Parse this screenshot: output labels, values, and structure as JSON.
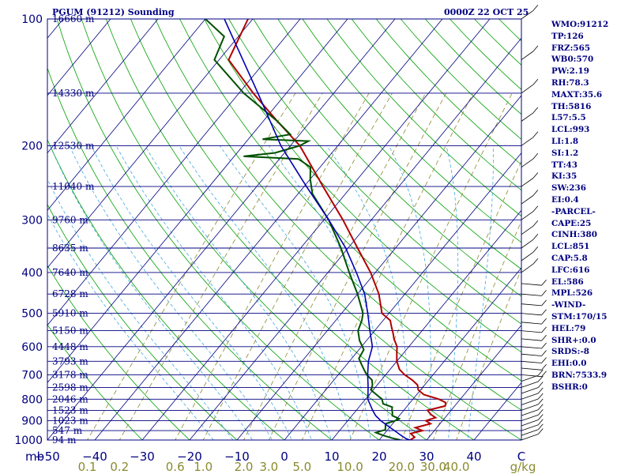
{
  "header": {
    "station": "PGUM (91212) Sounding",
    "time": "0000Z 22 OCT 25"
  },
  "indices": [
    "WMO:91212",
    "TP:126",
    "FRZ:565",
    "WB0:570",
    "PW:2.19",
    "RH:78.3",
    "MAXT:35.6",
    "TH:5816",
    "L57:5.5",
    "LCL:993",
    "LI:1.8",
    "SI:1.2",
    "TT:43",
    "KI:35",
    "SW:236",
    "EI:0.4",
    "-PARCEL-",
    "CAPE:25",
    "CINH:380",
    "LCL:851",
    "CAP:5.8",
    "LFC:616",
    "EL:586",
    "MPL:526",
    "-WIND-",
    "STM:170/15",
    "HEL:79",
    "SHR+:0.0",
    "SRDS:-8",
    "EHI:0.0",
    "BRN:7533.9",
    "BSHR:0"
  ],
  "colors": {
    "frame": "#000080",
    "temperature": "#b00000",
    "dewpoint": "#005000",
    "parcel": "#0000b0",
    "dry_adiabat": "#00a000",
    "moist_adiabat": "#40a8e0",
    "mixing_ratio": "#8a8a30"
  },
  "chart_data": {
    "type": "line",
    "diagram": "skew-T log-P",
    "y_axis_unit_label": "mb",
    "ylim_mb": [
      1000,
      100
    ],
    "y_scale": "log",
    "xlim_c_at_1000mb": [
      -50,
      50
    ],
    "pressure_ticks": [
      100,
      200,
      300,
      400,
      500,
      600,
      700,
      800,
      900,
      1000
    ],
    "temperature_ticks": [
      -50,
      -40,
      -30,
      -20,
      -10,
      0,
      10,
      20,
      30,
      40
    ],
    "temperature_tick_labels": [
      "−50",
      "−40",
      "−30",
      "−20",
      "−10",
      "0",
      "10",
      "20",
      "30",
      "40"
    ],
    "last_temp_tick_label": "C",
    "mixing_ratio_unit": "g/kg",
    "mixing_ratio_lines": [
      0.1,
      0.2,
      0.6,
      1.0,
      2.0,
      3.0,
      5.0,
      10.0,
      20.0,
      30.0,
      40.0
    ],
    "mixing_ratio_labels": [
      "0.1",
      "0.2",
      "0.6",
      "1.0",
      "2.0",
      "3.0",
      "5.0",
      "10.0",
      "20.0",
      "30.0",
      "40.0"
    ],
    "height_levels": [
      {
        "p": 1000,
        "label": "94 m"
      },
      {
        "p": 950,
        "label": "547 m"
      },
      {
        "p": 900,
        "label": "1023 m"
      },
      {
        "p": 850,
        "label": "1523 m"
      },
      {
        "p": 800,
        "label": "2046 m"
      },
      {
        "p": 750,
        "label": "2598 m"
      },
      {
        "p": 700,
        "label": "3178 m"
      },
      {
        "p": 650,
        "label": "3793 m"
      },
      {
        "p": 600,
        "label": "4448 m"
      },
      {
        "p": 550,
        "label": "5150 m"
      },
      {
        "p": 500,
        "label": "5910 m"
      },
      {
        "p": 450,
        "label": "6728 m"
      },
      {
        "p": 400,
        "label": "7640 m"
      },
      {
        "p": 350,
        "label": "8635 m"
      },
      {
        "p": 300,
        "label": "9760 m"
      },
      {
        "p": 250,
        "label": "11040 m"
      },
      {
        "p": 200,
        "label": "12530 m"
      },
      {
        "p": 150,
        "label": "14330 m"
      },
      {
        "p": 100,
        "label": "16660 m"
      }
    ],
    "series": [
      {
        "key": "temperature",
        "points": [
          [
            1000,
            26.5
          ],
          [
            985,
            27
          ],
          [
            965,
            25.5
          ],
          [
            950,
            27.5
          ],
          [
            935,
            25.5
          ],
          [
            915,
            28
          ],
          [
            900,
            26.5
          ],
          [
            885,
            28
          ],
          [
            870,
            26.5
          ],
          [
            850,
            25
          ],
          [
            830,
            28
          ],
          [
            815,
            27.5
          ],
          [
            800,
            25.5
          ],
          [
            780,
            21.5
          ],
          [
            760,
            19.5
          ],
          [
            740,
            18.5
          ],
          [
            720,
            16.5
          ],
          [
            700,
            14
          ],
          [
            680,
            12
          ],
          [
            650,
            10
          ],
          [
            620,
            8.5
          ],
          [
            600,
            7.5
          ],
          [
            575,
            5.5
          ],
          [
            560,
            4.5
          ],
          [
            540,
            3
          ],
          [
            520,
            1.5
          ],
          [
            500,
            -1.5
          ],
          [
            450,
            -5.5
          ],
          [
            400,
            -11
          ],
          [
            350,
            -18
          ],
          [
            300,
            -26
          ],
          [
            250,
            -36
          ],
          [
            200,
            -48
          ],
          [
            175,
            -57
          ],
          [
            150,
            -67
          ],
          [
            125,
            -78
          ],
          [
            100,
            -81
          ],
          [
            90,
            -80
          ]
        ]
      },
      {
        "key": "dewpoint",
        "points": [
          [
            1000,
            24.5
          ],
          [
            990,
            22.5
          ],
          [
            975,
            20
          ],
          [
            960,
            18
          ],
          [
            945,
            19.5
          ],
          [
            930,
            19
          ],
          [
            915,
            18.5
          ],
          [
            900,
            20
          ],
          [
            890,
            20.5
          ],
          [
            875,
            18.5
          ],
          [
            860,
            18
          ],
          [
            850,
            17.5
          ],
          [
            835,
            17
          ],
          [
            820,
            14.5
          ],
          [
            800,
            13.5
          ],
          [
            780,
            11.5
          ],
          [
            760,
            9.5
          ],
          [
            740,
            9
          ],
          [
            720,
            8
          ],
          [
            700,
            6
          ],
          [
            680,
            4.5
          ],
          [
            660,
            3
          ],
          [
            640,
            1.5
          ],
          [
            610,
            1
          ],
          [
            580,
            -1.5
          ],
          [
            550,
            -3.5
          ],
          [
            520,
            -4.5
          ],
          [
            500,
            -5.5
          ],
          [
            450,
            -10
          ],
          [
            400,
            -15.5
          ],
          [
            350,
            -21.5
          ],
          [
            300,
            -29
          ],
          [
            260,
            -37
          ],
          [
            240,
            -40
          ],
          [
            225,
            -42
          ],
          [
            215,
            -46
          ],
          [
            212,
            -58
          ],
          [
            208,
            -52
          ],
          [
            200,
            -48
          ],
          [
            195,
            -47
          ],
          [
            193,
            -57
          ],
          [
            188,
            -52
          ],
          [
            175,
            -57
          ],
          [
            150,
            -69
          ],
          [
            125,
            -81
          ],
          [
            110,
            -83
          ],
          [
            100,
            -90
          ]
        ]
      },
      {
        "key": "parcel",
        "points": [
          [
            1000,
            26.5
          ],
          [
            993,
            25.5
          ],
          [
            975,
            23.8
          ],
          [
            950,
            21.6
          ],
          [
            925,
            19.3
          ],
          [
            900,
            17
          ],
          [
            875,
            15
          ],
          [
            851,
            13.5
          ],
          [
            800,
            10.5
          ],
          [
            750,
            8.5
          ],
          [
            700,
            6.2
          ],
          [
            650,
            4
          ],
          [
            600,
            2.3
          ],
          [
            550,
            -1
          ],
          [
            500,
            -4.5
          ],
          [
            450,
            -8.5
          ],
          [
            400,
            -14
          ],
          [
            350,
            -20.5
          ],
          [
            300,
            -29
          ],
          [
            250,
            -39.5
          ],
          [
            200,
            -52
          ],
          [
            150,
            -66
          ],
          [
            125,
            -75
          ],
          [
            100,
            -86
          ]
        ]
      }
    ],
    "barb_column": "right edge, 100–1000 mb"
  }
}
